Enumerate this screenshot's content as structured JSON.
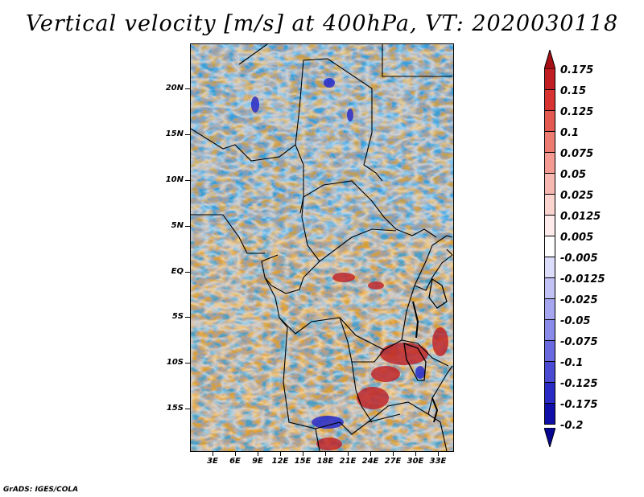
{
  "title": "Vertical velocity [m/s] at 400hPa, VT: 2020030118",
  "map": {
    "lat_labels": [
      "20N",
      "15N",
      "10N",
      "5N",
      "EQ",
      "5S",
      "10S",
      "15S"
    ],
    "lon_labels": [
      "3E",
      "6E",
      "9E",
      "12E",
      "15E",
      "18E",
      "21E",
      "24E",
      "27E",
      "30E",
      "33E"
    ]
  },
  "colorbar": {
    "levels": [
      "0.175",
      "0.15",
      "0.125",
      "0.1",
      "0.075",
      "0.05",
      "0.025",
      "0.0125",
      "0.005",
      "-0.005",
      "-0.0125",
      "-0.025",
      "-0.05",
      "-0.075",
      "-0.1",
      "-0.125",
      "-0.175",
      "-0.2"
    ],
    "colors": [
      "#a50f15",
      "#c01e22",
      "#d73333",
      "#e35a52",
      "#ec7b72",
      "#f39a92",
      "#f8b8b2",
      "#fbd3cf",
      "#fdeceb",
      "#ffffff",
      "#dcdcfb",
      "#c2c2f6",
      "#a6a6f0",
      "#8a8ae8",
      "#6a6ade",
      "#4a4ad2",
      "#2a2ac4",
      "#1010a8",
      "#060690"
    ]
  },
  "footer": "GrADS: IGES/COLA"
}
